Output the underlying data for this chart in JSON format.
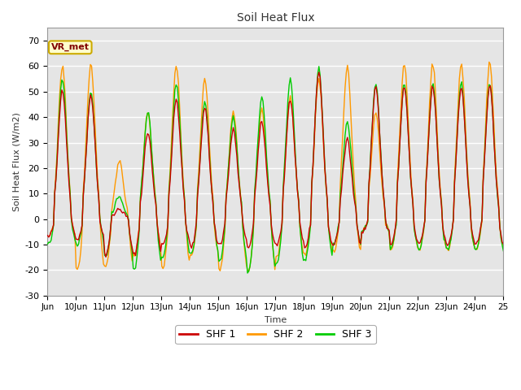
{
  "title": "Soil Heat Flux",
  "ylabel": "Soil Heat Flux (W/m2)",
  "xlabel": "Time",
  "ylim": [
    -30,
    75
  ],
  "yticks": [
    -30,
    -20,
    -10,
    0,
    10,
    20,
    30,
    40,
    50,
    60,
    70
  ],
  "xlim_start": 0,
  "xlim_end": 384,
  "x_tick_positions": [
    0,
    24,
    48,
    72,
    96,
    120,
    144,
    168,
    192,
    216,
    240,
    264,
    288,
    312,
    336,
    360,
    384
  ],
  "x_tick_labels": [
    "Jun",
    "10Jun",
    "11Jun",
    "12Jun",
    "13Jun",
    "14Jun",
    "15Jun",
    "16Jun",
    "17Jun",
    "18Jun",
    "19Jun",
    "20Jun",
    "21Jun",
    "22Jun",
    "23Jun",
    "24Jun",
    "25"
  ],
  "background_color": "#e5e5e5",
  "line_colors": [
    "#cc0000",
    "#ff9900",
    "#00cc00"
  ],
  "line_labels": [
    "SHF 1",
    "SHF 2",
    "SHF 3"
  ],
  "line_width": 1.0,
  "grid_color": "#ffffff",
  "vr_met_box_facecolor": "#ffffcc",
  "vr_met_box_edgecolor": "#ccaa00",
  "vr_met_text_color": "#800000",
  "day_peaks_shf2": [
    60,
    60,
    23,
    42,
    60,
    55,
    42,
    43,
    48,
    55,
    60,
    42,
    61
  ],
  "day_peaks_shf1": [
    51,
    49,
    4,
    34,
    47,
    44,
    35,
    38,
    47,
    58,
    31,
    52
  ],
  "day_peaks_shf3": [
    55,
    50,
    9,
    42,
    53,
    46,
    40,
    48,
    55,
    59,
    38,
    53
  ],
  "night_troughs_shf1": [
    -7,
    -8,
    -14,
    -14,
    -10,
    -11,
    -10,
    -11,
    -10,
    -11,
    -10,
    -5,
    -10
  ],
  "night_troughs_shf2": [
    -7,
    -20,
    -19,
    -14,
    -19,
    -14,
    -20,
    -21,
    -15,
    -14,
    -13,
    -5,
    -12
  ],
  "night_troughs_shf3": [
    -10,
    -10,
    -15,
    -20,
    -15,
    -14,
    -17,
    -21,
    -18,
    -16,
    -10,
    -5,
    -12
  ]
}
